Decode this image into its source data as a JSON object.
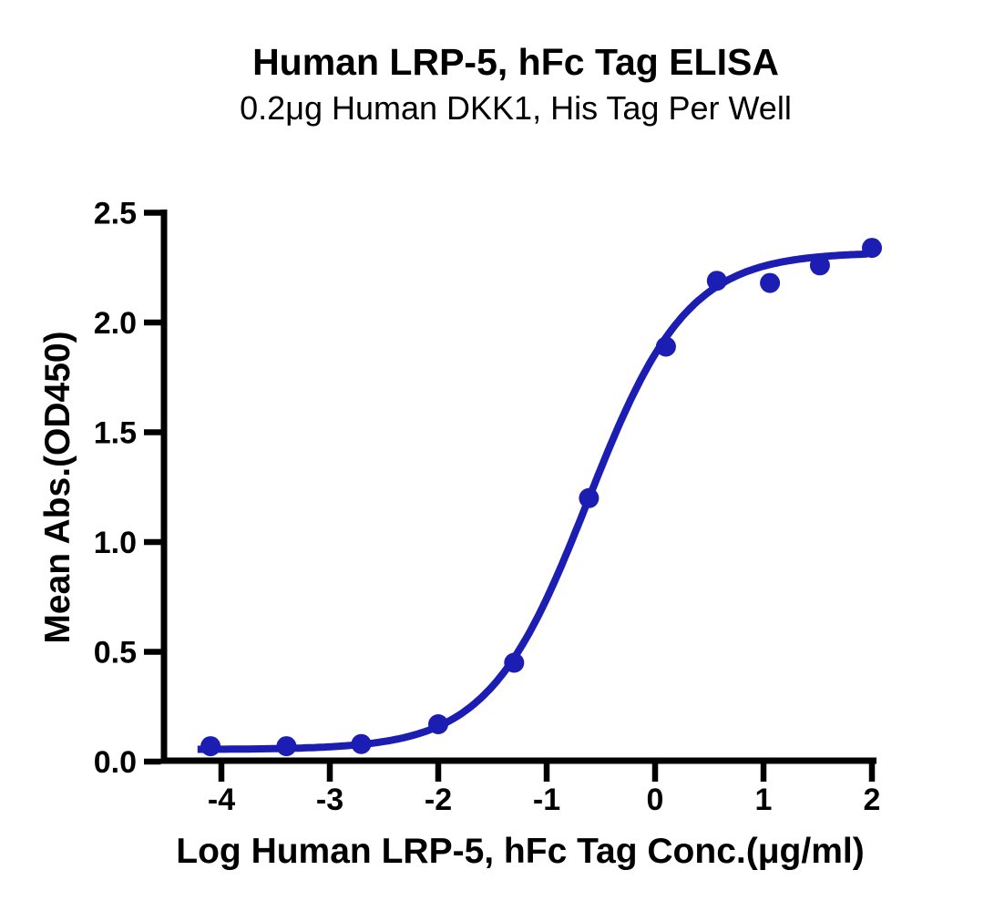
{
  "page": {
    "background_color": "#ffffff",
    "kind": "elisa-binding-curve-figure"
  },
  "chart_data": {
    "type": "scatter",
    "title": "Human LRP-5, hFc Tag ELISA",
    "subtitle": "0.2μg Human DKK1, His Tag Per Well",
    "xlabel": "Log Human LRP-5, hFc Tag Conc.(μg/ml)",
    "ylabel": "Mean Abs.(OD450)",
    "xlim": [
      -4,
      2
    ],
    "ylim": [
      0,
      2.5
    ],
    "x_ticks": [
      -4,
      -3,
      -2,
      -1,
      0,
      1,
      2
    ],
    "x_tick_labels": [
      "-4",
      "-3",
      "-2",
      "-1",
      "0",
      "1",
      "2"
    ],
    "y_ticks": [
      0,
      0.5,
      1,
      1.5,
      2,
      2.5
    ],
    "y_tick_labels": [
      "0.0",
      "0.5",
      "1.0",
      "1.5",
      "2.0",
      "2.5"
    ],
    "grid": false,
    "legend": "none",
    "axis_color": "#000000",
    "series": [
      {
        "name": "Human LRP-5, hFc Tag",
        "marker": "circle",
        "marker_color": "#1c1db2",
        "line_color": "#1c1db2",
        "points": [
          {
            "x": -4.1,
            "y": 0.07
          },
          {
            "x": -3.4,
            "y": 0.07
          },
          {
            "x": -2.71,
            "y": 0.08
          },
          {
            "x": -2.0,
            "y": 0.17
          },
          {
            "x": -1.3,
            "y": 0.45
          },
          {
            "x": -0.61,
            "y": 1.2
          },
          {
            "x": 0.1,
            "y": 1.89
          },
          {
            "x": 0.57,
            "y": 2.19
          },
          {
            "x": 1.06,
            "y": 2.18
          },
          {
            "x": 1.52,
            "y": 2.26
          },
          {
            "x": 2.0,
            "y": 2.34
          }
        ],
        "fit_curve": {
          "model": "4PL",
          "bottom": 0.055,
          "top": 2.32,
          "log_ec50": -0.62,
          "hill_slope": 0.95,
          "x_start": -4.22,
          "x_end": 1.96
        }
      }
    ]
  }
}
